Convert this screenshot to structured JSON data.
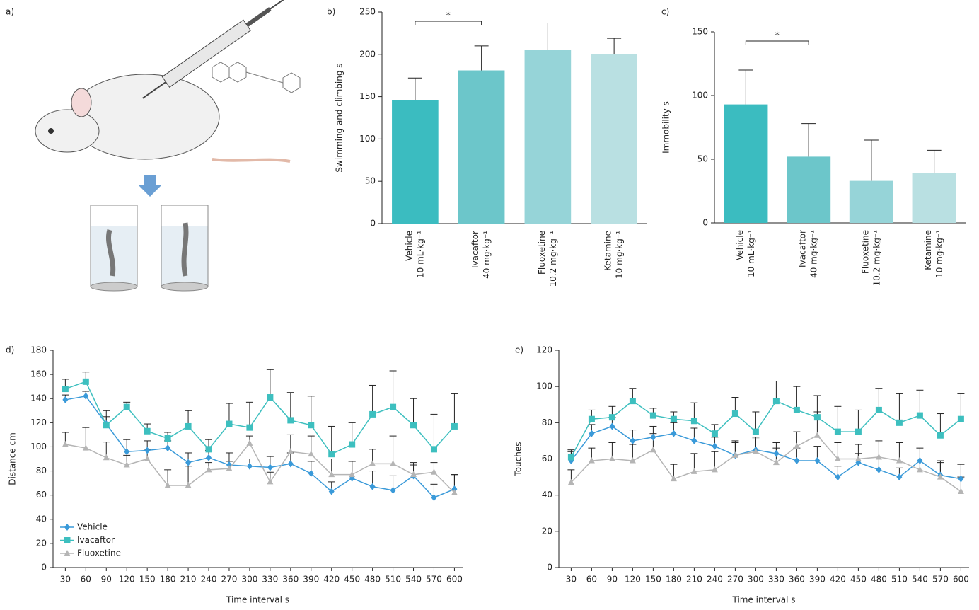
{
  "illustration_label": "a)",
  "chart_data": [
    {
      "type": "bar",
      "panel_label": "b)",
      "ylabel": "Swimming and climbing s",
      "categories": [
        "Vehicle",
        "Ivacaftor",
        "Fluoxetine",
        "Ketamine"
      ],
      "category_doses": [
        "10 mL·kg⁻¹",
        "40 mg·kg⁻¹",
        "10.2 mg·kg⁻¹",
        "10 mg·kg⁻¹"
      ],
      "values": [
        146,
        181,
        205,
        200
      ],
      "errors": [
        26,
        29,
        32,
        19
      ],
      "colors": [
        "#3bbcc0",
        "#6cc6ca",
        "#96d4d8",
        "#b9e0e2"
      ],
      "ylim": [
        0,
        250
      ],
      "yticks": [
        0,
        50,
        100,
        150,
        200,
        250
      ],
      "significance": {
        "label": "*",
        "categories": [
          "Vehicle",
          "Ivacaftor"
        ]
      }
    },
    {
      "type": "bar",
      "panel_label": "c)",
      "ylabel": "Immobility s",
      "categories": [
        "Vehicle",
        "Ivacaftor",
        "Fluoxetine",
        "Ketamine"
      ],
      "category_doses": [
        "10 mL·kg⁻¹",
        "40 mg·kg⁻¹",
        "10.2 mg·kg⁻¹",
        "10 mg·kg⁻¹"
      ],
      "values": [
        93,
        52,
        33,
        39
      ],
      "errors": [
        27,
        26,
        32,
        18
      ],
      "colors": [
        "#3bbcc0",
        "#6cc6ca",
        "#96d4d8",
        "#b9e0e2"
      ],
      "ylim": [
        0,
        150
      ],
      "yticks": [
        0,
        50,
        100,
        150
      ],
      "significance": {
        "label": "*",
        "categories": [
          "Vehicle",
          "Ivacaftor"
        ]
      }
    },
    {
      "type": "line",
      "panel_label": "d)",
      "ylabel": "Distance cm",
      "xlabel": "Time interval s",
      "x": [
        30,
        60,
        90,
        120,
        150,
        180,
        210,
        240,
        270,
        300,
        330,
        360,
        390,
        420,
        450,
        480,
        510,
        540,
        570,
        600
      ],
      "xlim": [
        12,
        612
      ],
      "xticks": [
        30,
        60,
        90,
        120,
        150,
        180,
        210,
        240,
        270,
        300,
        330,
        360,
        390,
        420,
        450,
        480,
        510,
        540,
        570,
        600
      ],
      "ylim": [
        0,
        180
      ],
      "yticks": [
        0,
        20,
        40,
        60,
        80,
        100,
        120,
        140,
        160,
        180
      ],
      "legend": "lower left",
      "series": [
        {
          "name": "Vehicle",
          "color": "#3a9ad9",
          "marker": "diamond",
          "values": [
            139,
            142,
            119,
            96,
            97,
            99,
            87,
            91,
            85,
            84,
            83,
            86,
            78,
            63,
            74,
            67,
            64,
            76,
            58,
            65
          ],
          "errors": [
            4,
            4,
            6,
            10,
            8,
            6,
            8,
            6,
            10,
            6,
            9,
            9,
            10,
            8,
            14,
            13,
            12,
            9,
            11,
            12
          ]
        },
        {
          "name": "Ivacaftor",
          "color": "#3dbfbf",
          "marker": "square",
          "values": [
            148,
            154,
            118,
            133,
            113,
            107,
            117,
            98,
            119,
            116,
            141,
            122,
            118,
            94,
            102,
            127,
            133,
            118,
            98,
            117
          ],
          "errors": [
            8,
            8,
            12,
            4,
            6,
            5,
            13,
            8,
            17,
            21,
            23,
            23,
            24,
            23,
            18,
            24,
            30,
            22,
            29,
            27
          ]
        },
        {
          "name": "Fluoxetine",
          "color": "#b5b5b5",
          "marker": "triangle",
          "values": [
            102,
            99,
            91,
            85,
            90,
            68,
            68,
            81,
            82,
            103,
            71,
            96,
            94,
            77,
            77,
            86,
            86,
            77,
            79,
            62
          ],
          "errors": [
            10,
            17,
            13,
            8,
            8,
            13,
            16,
            6,
            6,
            6,
            8,
            14,
            15,
            13,
            11,
            12,
            23,
            10,
            8,
            15
          ]
        }
      ]
    },
    {
      "type": "line",
      "panel_label": "e)",
      "ylabel": "Touches",
      "xlabel": "Time interval s",
      "x": [
        30,
        60,
        90,
        120,
        150,
        180,
        210,
        240,
        270,
        300,
        330,
        360,
        390,
        420,
        450,
        480,
        510,
        540,
        570,
        600
      ],
      "xlim": [
        12,
        612
      ],
      "xticks": [
        30,
        60,
        90,
        120,
        150,
        180,
        210,
        240,
        270,
        300,
        330,
        360,
        390,
        420,
        450,
        480,
        510,
        540,
        570,
        600
      ],
      "ylim": [
        0,
        120
      ],
      "yticks": [
        0,
        20,
        40,
        60,
        80,
        100,
        120
      ],
      "series": [
        {
          "name": "Vehicle",
          "color": "#3a9ad9",
          "marker": "diamond",
          "values": [
            59,
            74,
            78,
            70,
            72,
            74,
            70,
            67,
            62,
            65,
            63,
            59,
            59,
            50,
            58,
            54,
            50,
            59,
            51,
            49
          ],
          "errors": [
            5,
            5,
            5,
            6,
            6,
            6,
            7,
            5,
            7,
            6,
            6,
            7,
            8,
            6,
            5,
            6,
            5,
            7,
            8,
            8
          ]
        },
        {
          "name": "Ivacaftor",
          "color": "#3dbfbf",
          "marker": "square",
          "values": [
            61,
            82,
            83,
            92,
            84,
            82,
            81,
            74,
            85,
            75,
            92,
            87,
            83,
            75,
            75,
            87,
            80,
            84,
            73,
            82
          ],
          "errors": [
            4,
            5,
            6,
            7,
            4,
            4,
            10,
            5,
            9,
            11,
            11,
            13,
            12,
            14,
            12,
            12,
            16,
            14,
            12,
            14
          ]
        },
        {
          "name": "Fluoxetine",
          "color": "#b5b5b5",
          "marker": "triangle",
          "values": [
            47,
            59,
            60,
            59,
            65,
            49,
            53,
            54,
            62,
            64,
            58,
            67,
            73,
            60,
            60,
            61,
            59,
            54,
            50,
            42
          ],
          "errors": [
            7,
            7,
            9,
            9,
            9,
            8,
            10,
            10,
            8,
            8,
            8,
            8,
            13,
            9,
            8,
            9,
            10,
            6,
            8,
            8
          ]
        }
      ]
    }
  ]
}
